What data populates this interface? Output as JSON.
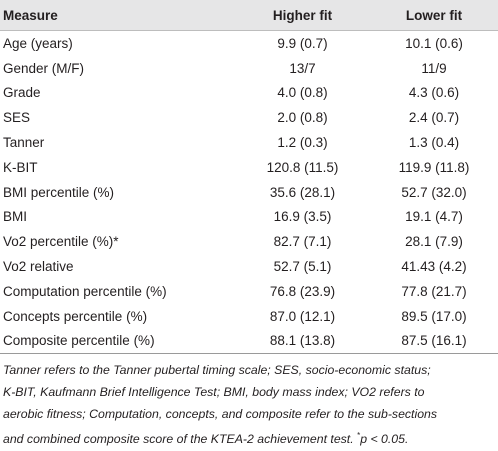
{
  "table": {
    "header": [
      "Measure",
      "Higher fit",
      "Lower fit"
    ],
    "rows": [
      [
        "Age (years)",
        "9.9 (0.7)",
        "10.1 (0.6)"
      ],
      [
        "Gender (M/F)",
        "13/7",
        "11/9"
      ],
      [
        "Grade",
        "4.0 (0.8)",
        "4.3 (0.6)"
      ],
      [
        "SES",
        "2.0 (0.8)",
        "2.4 (0.7)"
      ],
      [
        "Tanner",
        "1.2 (0.3)",
        "1.3 (0.4)"
      ],
      [
        "K-BIT",
        "120.8 (11.5)",
        "119.9 (11.8)"
      ],
      [
        "BMI percentile (%)",
        "35.6 (28.1)",
        "52.7 (32.0)"
      ],
      [
        "BMI",
        "16.9 (3.5)",
        "19.1 (4.7)"
      ],
      [
        "Vo2 percentile (%)*",
        "82.7 (7.1)",
        "28.1 (7.9)"
      ],
      [
        "Vo2 relative",
        "52.7 (5.1)",
        "41.43 (4.2)"
      ],
      [
        "Computation percentile (%)",
        "76.8 (23.9)",
        "77.8 (21.7)"
      ],
      [
        "Concepts percentile (%)",
        "87.0 (12.1)",
        "89.5 (17.0)"
      ],
      [
        "Composite percentile (%)",
        "88.1 (13.8)",
        "87.5 (16.1)"
      ]
    ]
  },
  "footnote": {
    "lines": [
      "Tanner refers to the Tanner pubertal timing scale; SES, socio-economic status;",
      "K-BIT, Kaufmann Brief Intelligence Test; BMI, body mass index; VO2 refers to",
      "aerobic fitness; Computation, concepts, and composite refer to the sub-sections",
      "and combined composite score of the KTEA-2 achievement test. "
    ],
    "mark": "*",
    "significance": "p < 0.05."
  }
}
